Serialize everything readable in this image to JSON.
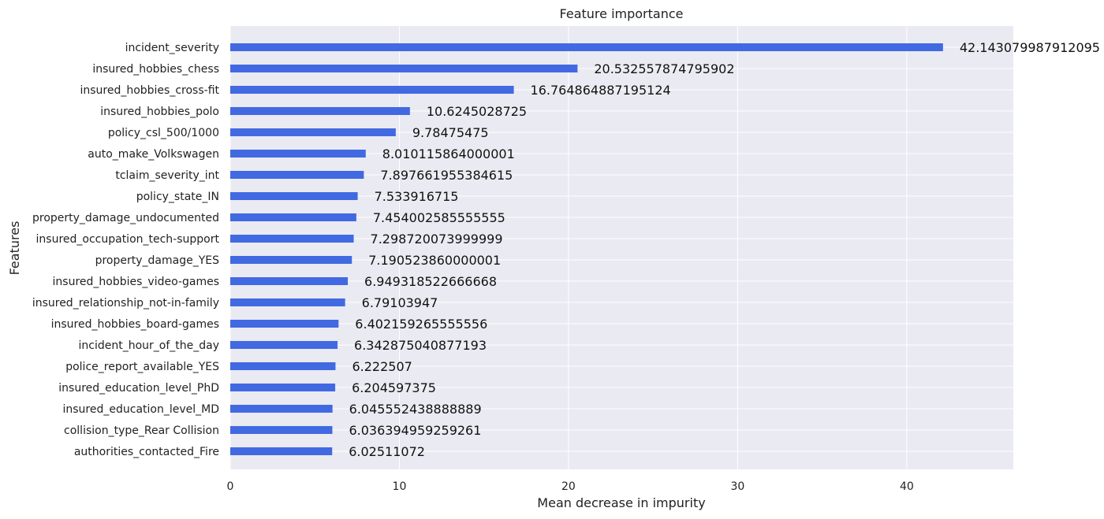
{
  "chart_data": {
    "type": "bar",
    "orientation": "horizontal",
    "title": "Feature importance",
    "xlabel": "Mean decrease in impurity",
    "ylabel": "Features",
    "xlim": [
      0,
      46.3
    ],
    "xticks": [
      0,
      10,
      20,
      30,
      40
    ],
    "grid": true,
    "bar_color": "#4169E1",
    "categories": [
      "incident_severity",
      "insured_hobbies_chess",
      "insured_hobbies_cross-fit",
      "insured_hobbies_polo",
      "policy_csl_500/1000",
      "auto_make_Volkswagen",
      "tclaim_severity_int",
      "policy_state_IN",
      "property_damage_undocumented",
      "insured_occupation_tech-support",
      "property_damage_YES",
      "insured_hobbies_video-games",
      "insured_relationship_not-in-family",
      "insured_hobbies_board-games",
      "incident_hour_of_the_day",
      "police_report_available_YES",
      "insured_education_level_PhD",
      "insured_education_level_MD",
      "collision_type_Rear Collision",
      "authorities_contacted_Fire"
    ],
    "values": [
      42.143079987912095,
      20.532557874795902,
      16.764864887195124,
      10.6245028725,
      9.78475475,
      8.010115864000001,
      7.897661955384615,
      7.533916715,
      7.454002585555555,
      7.298720073999999,
      7.190523860000001,
      6.949318522666668,
      6.79103947,
      6.402159265555556,
      6.342875040877193,
      6.222507,
      6.204597375,
      6.045552438888889,
      6.036394959259261,
      6.02511072
    ],
    "value_labels": [
      "42.143079987912095",
      "20.532557874795902",
      "16.764864887195124",
      "10.6245028725",
      "9.78475475",
      "8.010115864000001",
      "7.897661955384615",
      "7.533916715",
      "7.454002585555555",
      "7.298720073999999",
      "7.190523860000001",
      "6.949318522666668",
      "6.79103947",
      "6.402159265555556",
      "6.342875040877193",
      "6.222507",
      "6.204597375",
      "6.045552438888889",
      "6.036394959259261",
      "6.02511072"
    ]
  }
}
